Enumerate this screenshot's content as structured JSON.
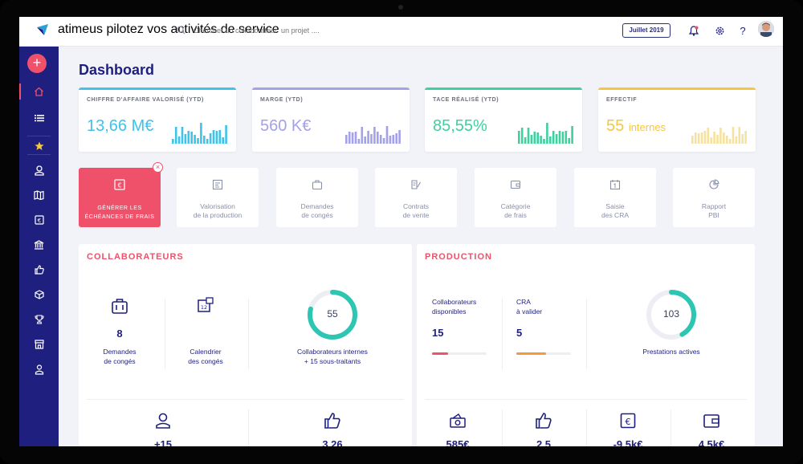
{
  "app": {
    "name": "atimeus",
    "tagline": "pilotez vos activités de service"
  },
  "search": {
    "placeholder": "Chercher un collaborateur  un projet ...."
  },
  "header": {
    "period": "Juillet 2019",
    "help": "?"
  },
  "page": {
    "title": "Dashboard"
  },
  "kpis": [
    {
      "label": "CHIFFRE D'AFFAIRE VALORISÉ (YTD)",
      "value": "13,66 M€",
      "color": "#3fc3e8"
    },
    {
      "label": "MARGE (YTD)",
      "value": "560 K€",
      "color": "#a3a1e8"
    },
    {
      "label": "TACE RÉALISÉ (YTD)",
      "value": "85,55%",
      "color": "#3fd0a0"
    },
    {
      "label": "EFFECTIF",
      "value": "55",
      "value_suffix": "internes",
      "color": "#f5c740"
    }
  ],
  "actions": [
    {
      "line1": "GÉNÉRER LES",
      "line2": "ÉCHÉANCES DE FRAIS",
      "icon": "euro-card-icon"
    },
    {
      "line1": "Valorisation",
      "line2": "de la production",
      "icon": "document-icon"
    },
    {
      "line1": "Demandes",
      "line2": "de congés",
      "icon": "briefcase-icon"
    },
    {
      "line1": "Contrats",
      "line2": "de vente",
      "icon": "contract-icon"
    },
    {
      "line1": "Catégorie",
      "line2": "de frais",
      "icon": "wallet-icon"
    },
    {
      "line1": "Saisie",
      "line2": "des CRA",
      "icon": "calendar-icon"
    },
    {
      "line1": "Rapport",
      "line2": "PBI",
      "icon": "pie-chart-icon"
    }
  ],
  "collaborateurs": {
    "title": "COLLABORATEURS",
    "leave_requests": {
      "value": "8",
      "label1": "Demandes",
      "label2": "de congés"
    },
    "leave_calendar": {
      "label1": "Calendrier",
      "label2": "des congés"
    },
    "internal": {
      "value": "55",
      "label1": "Collaborateurs internes",
      "label2": "+ 15 sous-traitants",
      "ring_fraction": 0.79
    },
    "bottom": [
      {
        "value": "+15",
        "icon": "user-icon"
      },
      {
        "value": "3,26",
        "icon": "thumbs-up-icon"
      }
    ]
  },
  "production": {
    "title": "PRODUCTION",
    "available": {
      "label1": "Collaborateurs",
      "label2": "disponibles",
      "value": "15",
      "meter_fraction": 0.3,
      "color": "#f0516a"
    },
    "cra": {
      "label1": "CRA",
      "label2": "à valider",
      "value": "5",
      "meter_fraction": 0.55,
      "color": "#f59a3a"
    },
    "activities": {
      "value": "103",
      "label": "Prestations actives",
      "ring_fraction": 0.42
    },
    "bottom": [
      {
        "value": "585€",
        "icon": "cash-icon"
      },
      {
        "value": "2,5",
        "icon": "thumbs-up-icon"
      },
      {
        "value": "-9,5k€",
        "icon": "euro-note-icon"
      },
      {
        "value": "4,5k€",
        "icon": "wallet-icon"
      }
    ]
  },
  "colors": {
    "brand": "#1e1f7e",
    "accent": "#f0516a",
    "teal": "#2cc6b2"
  }
}
